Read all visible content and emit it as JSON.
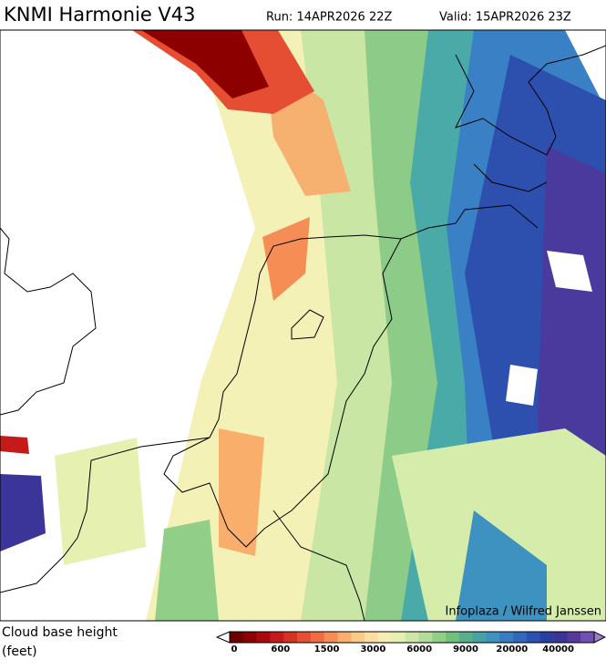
{
  "header": {
    "title": "KNMI Harmonie V43",
    "run": "Run: 14APR2026 22Z",
    "valid": "Valid: 15APR2026 23Z"
  },
  "map": {
    "credit": "Infoplaza / Wilfred Janssen"
  },
  "legend": {
    "label_line1": "Cloud base height",
    "label_line2": "(feet)",
    "colors": [
      "#6e0000",
      "#8c0000",
      "#a80a0a",
      "#c41a1a",
      "#d63224",
      "#e64e33",
      "#f06c43",
      "#f58d55",
      "#f9ae6b",
      "#fbca86",
      "#fbdfa2",
      "#f6edb4",
      "#e6f0b0",
      "#cde8a6",
      "#b1dd98",
      "#91cf88",
      "#71c07c",
      "#56b08a",
      "#45a2a6",
      "#3d92bf",
      "#387dc4",
      "#3068bb",
      "#2b52b0",
      "#2b3fa3",
      "#3b3599",
      "#55399f",
      "#7350b0"
    ],
    "ticks": [
      0,
      600,
      1500,
      3000,
      6000,
      9000,
      20000,
      40000
    ]
  }
}
